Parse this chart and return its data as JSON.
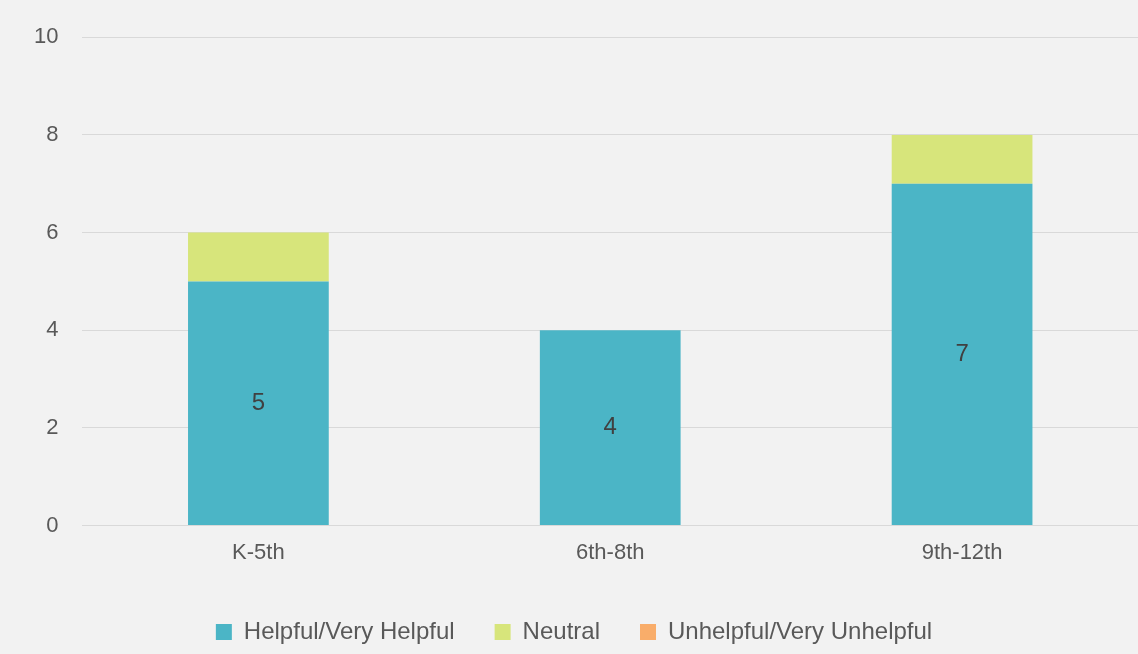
{
  "chart_data": {
    "type": "bar",
    "categories": [
      "K-5th",
      "6th-8th",
      "9th-12th"
    ],
    "series": [
      {
        "name": "Helpful/Very Helpful",
        "color": "#4bb5c6",
        "values": [
          5,
          4,
          7
        ],
        "value_labels": [
          "5",
          "4",
          "7"
        ]
      },
      {
        "name": "Neutral",
        "color": "#d7e57b",
        "values": [
          1,
          0,
          1
        ]
      },
      {
        "name": "Unhelpful/Very Unhelpful",
        "color": "#f9ad6a",
        "values": [
          0,
          0,
          0
        ]
      }
    ],
    "stacked": true,
    "ylim": [
      0,
      10
    ],
    "yticks": [
      0,
      2,
      4,
      6,
      8,
      10
    ],
    "grid": "y",
    "legend": "bottom"
  }
}
